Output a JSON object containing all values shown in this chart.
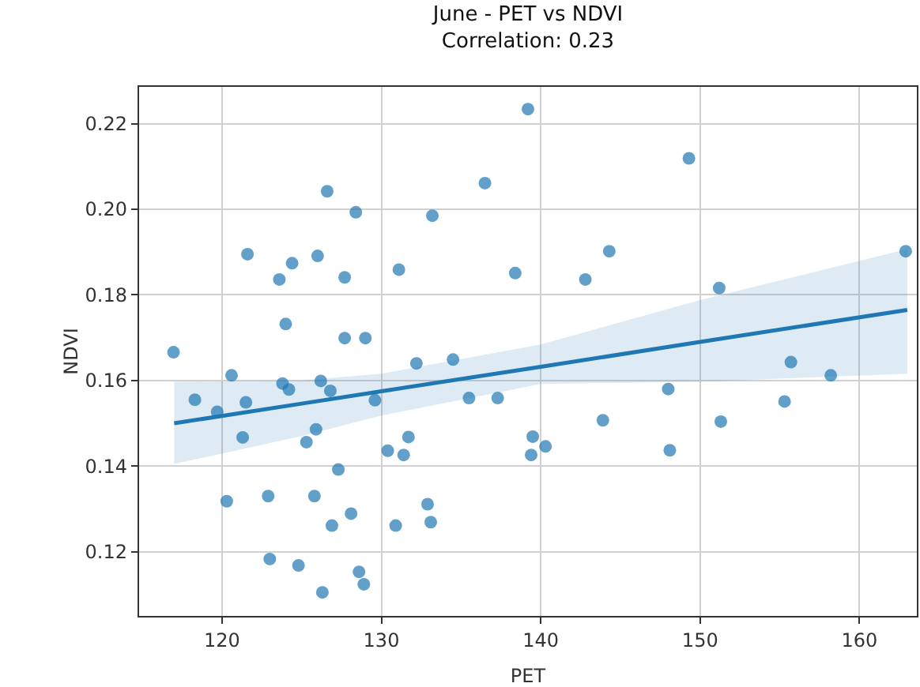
{
  "chart_data": {
    "type": "scatter",
    "title": "June - PET vs NDVI",
    "subtitle": "Correlation: 0.23",
    "xlabel": "PET",
    "ylabel": "NDVI",
    "xlim": [
      114.8,
      163.6
    ],
    "xticks": [
      120,
      130,
      140,
      150,
      160
    ],
    "ylim": [
      0.105,
      0.2286
    ],
    "yticks": [
      0.12,
      0.14,
      0.16,
      0.18,
      {
        "value": 0.2,
        "label": "0.20"
      },
      0.22
    ],
    "grid": true,
    "marker": "circle",
    "series": [
      {
        "color": "#1f77b4",
        "x": [
          116.96,
          118.3,
          119.7,
          120.6,
          120.3,
          121.5,
          121.3,
          121.6,
          122.9,
          123.0,
          123.6,
          124.4,
          124.0,
          123.8,
          124.2,
          124.8,
          125.3,
          125.9,
          125.8,
          126.0,
          126.2,
          126.6,
          126.3,
          126.8,
          126.9,
          127.3,
          127.7,
          127.7,
          128.4,
          128.1,
          128.6,
          128.9,
          129.0,
          129.6,
          130.4,
          131.4,
          131.7,
          130.9,
          132.9,
          133.1,
          131.1,
          132.2,
          133.2,
          134.5,
          135.5,
          136.5,
          137.3,
          138.4,
          139.2,
          139.5,
          140.3,
          139.4,
          142.8,
          144.3,
          143.9,
          149.3,
          151.2,
          148.0,
          148.1,
          151.3,
          155.7,
          155.3,
          158.2,
          162.9
        ],
        "values": [
          0.1666,
          0.1555,
          0.1527,
          0.1612,
          0.1318,
          0.1549,
          0.1467,
          0.1895,
          0.133,
          0.1183,
          0.1836,
          0.1874,
          0.1732,
          0.1593,
          0.1579,
          0.1168,
          0.1456,
          0.1486,
          0.133,
          0.1891,
          0.1599,
          0.2042,
          0.1105,
          0.1576,
          0.1261,
          0.1392,
          0.1841,
          0.1699,
          0.1993,
          0.1289,
          0.1153,
          0.1124,
          0.1699,
          0.1554,
          0.1436,
          0.1426,
          0.1468,
          0.1261,
          0.1311,
          0.1269,
          0.1859,
          0.164,
          0.1985,
          0.1649,
          0.1559,
          0.2061,
          0.1559,
          0.1851,
          0.2234,
          0.1469,
          0.1446,
          0.1426,
          0.1836,
          0.1902,
          0.1507,
          0.2119,
          0.1816,
          0.158,
          0.1437,
          0.1504,
          0.1643,
          0.1551,
          0.1612,
          0.1902
        ]
      },
      {
        "type": "line",
        "color": "#1f77b4",
        "marker": "none",
        "x": [
          117,
          125,
          130,
          140,
          150,
          163
        ],
        "values": [
          0.15,
          0.1546,
          0.1575,
          0.1632,
          0.169,
          0.1765
        ],
        "lower": [
          0.1405,
          0.147,
          0.1518,
          0.1592,
          0.1597,
          0.1616
        ],
        "upper": [
          0.1597,
          0.16,
          0.1616,
          0.1684,
          0.1788,
          0.1907
        ]
      }
    ]
  }
}
